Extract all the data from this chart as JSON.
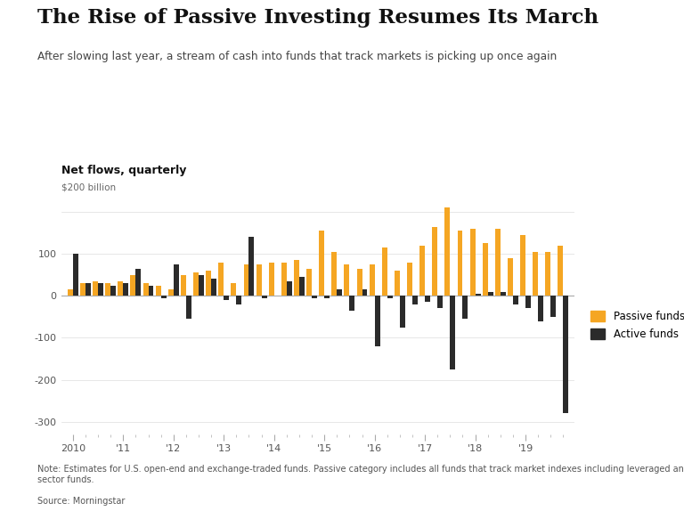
{
  "title": "The Rise of Passive Investing Resumes Its March",
  "subtitle": "After slowing last year, a stream of cash into funds that track markets is picking up once again",
  "ylabel_top": "Net flows, quarterly",
  "ylabel_unit": "$200 billion",
  "note": "Note: Estimates for U.S. open-end and exchange-traded funds. Passive category includes all funds that track market indexes including leveraged and\nsector funds.",
  "source": "Source: Morningstar",
  "passive_color": "#F5A623",
  "active_color": "#2B2B2B",
  "background_color": "#FFFFFF",
  "ylim": [
    -330,
    230
  ],
  "yticks": [
    -300,
    -200,
    -100,
    0,
    100,
    200
  ],
  "ytick_labels": [
    "-300",
    "-200",
    "-100",
    "0",
    "100",
    ""
  ],
  "passive": [
    15,
    30,
    35,
    30,
    35,
    50,
    30,
    25,
    15,
    50,
    55,
    60,
    80,
    30,
    75,
    75,
    80,
    80,
    85,
    65,
    155,
    105,
    75,
    65,
    75,
    115,
    60,
    80,
    120,
    165,
    210,
    155,
    160,
    125,
    160,
    90,
    145,
    105,
    105,
    120
  ],
  "active": [
    100,
    30,
    30,
    25,
    30,
    65,
    25,
    -5,
    75,
    -55,
    50,
    40,
    -10,
    -20,
    140,
    -5,
    0,
    35,
    45,
    -5,
    -5,
    15,
    -35,
    15,
    -120,
    -5,
    -75,
    -20,
    -15,
    -30,
    -175,
    -55,
    5,
    10,
    10,
    -20,
    -30,
    -60,
    -50,
    -280
  ],
  "xtick_year_indices": [
    0,
    4,
    8,
    12,
    16,
    20,
    24,
    28,
    32,
    36
  ],
  "xtick_labels": [
    "2010",
    "'11",
    "'12",
    "'13",
    "'14",
    "'15",
    "'16",
    "'17",
    "'18",
    "'19"
  ]
}
